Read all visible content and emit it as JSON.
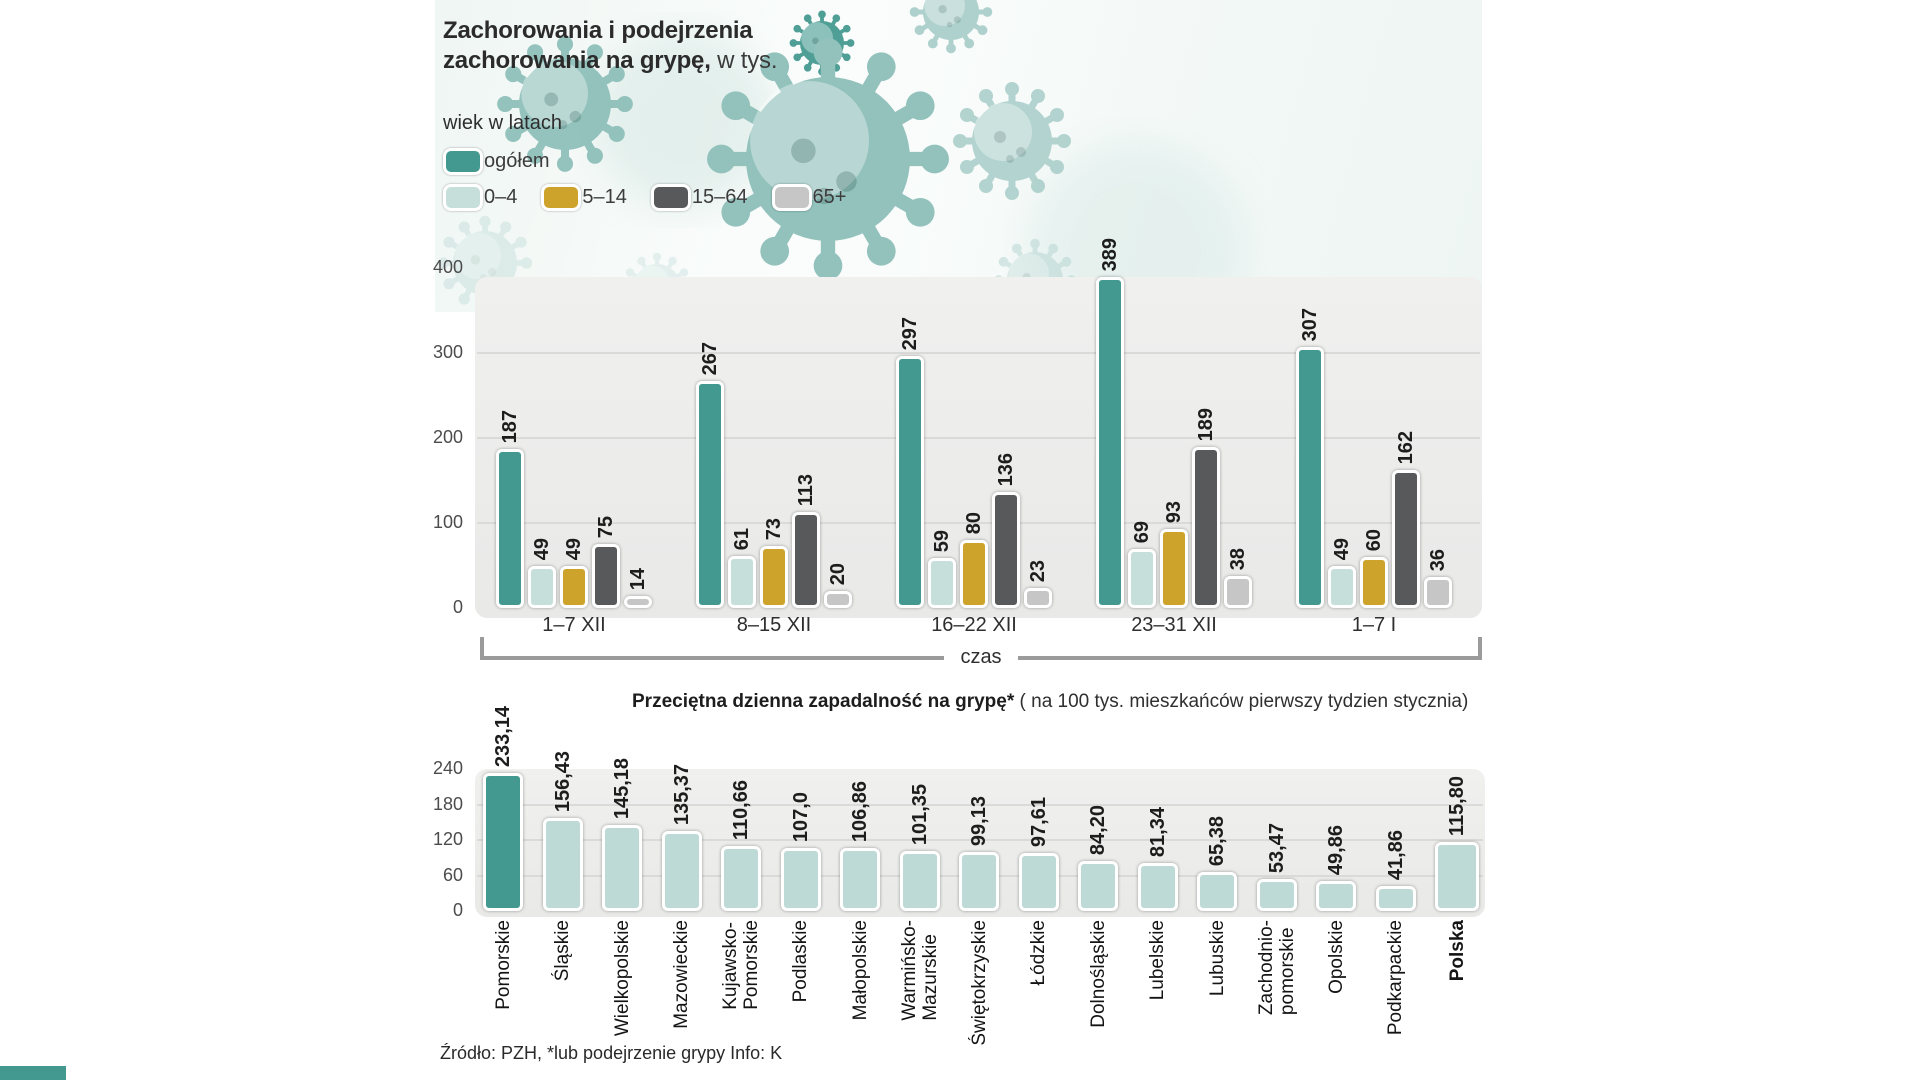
{
  "page": {
    "title_line1": "Zachorowania i podejrzenia",
    "title_line2": "zachorowania na grypę,",
    "title_unit": " w tys.",
    "source_note": "Źródło: PZH, *lub podejrzenie grypy Info: K"
  },
  "legend": {
    "caption": "wiek w latach",
    "items": [
      {
        "label": "ogółem",
        "color": "#43998f"
      },
      {
        "label": "0–4",
        "color": "#c6dfdb"
      },
      {
        "label": "5–14",
        "color": "#cda32b"
      },
      {
        "label": "15–64",
        "color": "#58595a"
      },
      {
        "label": "65+",
        "color": "#c6c6c6"
      }
    ]
  },
  "chart_data": [
    {
      "type": "bar",
      "title": "Zachorowania i podejrzenia zachorowania na grypę, w tys.",
      "categories": [
        "1–7 XII",
        "8–15 XII",
        "16–22 XII",
        "23–31 XII",
        "1–7 I"
      ],
      "series": [
        {
          "name": "ogółem",
          "color": "#43998f",
          "values": [
            187,
            267,
            297,
            389,
            307
          ]
        },
        {
          "name": "0–4",
          "color": "#c6dfdb",
          "values": [
            49,
            61,
            59,
            69,
            49
          ]
        },
        {
          "name": "5–14",
          "color": "#cda32b",
          "values": [
            49,
            73,
            80,
            93,
            60
          ]
        },
        {
          "name": "15–64",
          "color": "#58595a",
          "values": [
            75,
            113,
            136,
            189,
            162
          ]
        },
        {
          "name": "65+",
          "color": "#c6c6c6",
          "values": [
            14,
            20,
            23,
            38,
            36
          ]
        }
      ],
      "xlabel": "czas",
      "ylabel": "",
      "ylim": [
        0,
        400
      ],
      "yticks": [
        0,
        100,
        200,
        300,
        400
      ],
      "grid": true,
      "legend_position": "top-left"
    },
    {
      "type": "bar",
      "title": "Przeciętna dzienna zapadalność na grypę*",
      "subtitle": "( na 100 tys. mieszkańców pierwszy tydzien stycznia)",
      "categories": [
        "Pomorskie",
        "Śląskie",
        "Wielkopolskie",
        "Mazowieckie",
        "Kujawsko-\nPomorskie",
        "Podlaskie",
        "Małopolskie",
        "Warmińsko-\nMazurskie",
        "Świętokrzyskie",
        "Łódzkie",
        "Dolnośląskie",
        "Lubelskie",
        "Lubuskie",
        "Zachodnio-\npomorskie",
        "Opolskie",
        "Podkarpackie",
        "Polska"
      ],
      "values": [
        233.14,
        156.43,
        145.18,
        135.37,
        110.66,
        107.0,
        106.86,
        101.35,
        99.13,
        97.61,
        84.2,
        81.34,
        65.38,
        53.47,
        49.86,
        41.86,
        115.8
      ],
      "value_labels": [
        "233,14",
        "156,43",
        "145,18",
        "135,37",
        "110,66",
        "107,0",
        "106,86",
        "101,35",
        "99,13",
        "97,61",
        "84,20",
        "81,34",
        "65,38",
        "53,47",
        "49,86",
        "41,86",
        "115,80"
      ],
      "bar_color": "#bedad6",
      "highlight_color": "#43998f",
      "highlight_index": 0,
      "bold_category_index": 16,
      "ylim": [
        0,
        240
      ],
      "yticks": [
        0,
        60,
        120,
        180,
        240
      ],
      "grid": true
    }
  ]
}
